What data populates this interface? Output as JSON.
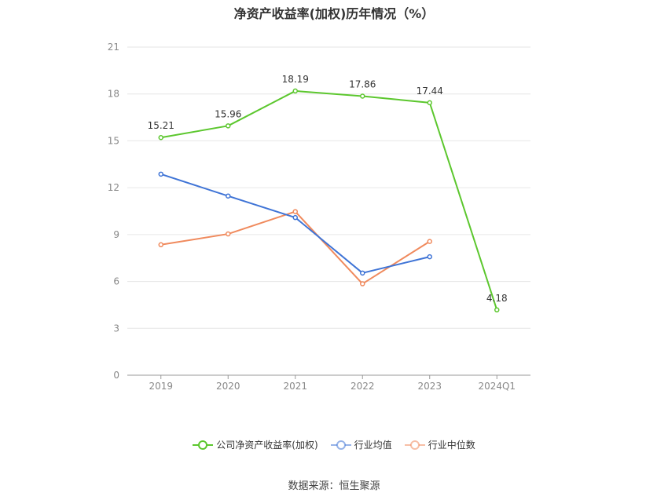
{
  "title": "净资产收益率(加权)历年情况（%）",
  "source": "数据来源：恒生聚源",
  "chart_data": {
    "type": "line",
    "title": "净资产收益率(加权)历年情况（%）",
    "categories": [
      "2019",
      "2020",
      "2021",
      "2022",
      "2023",
      "2024Q1"
    ],
    "ylim": [
      0,
      21
    ],
    "yticks": [
      0,
      3,
      6,
      9,
      12,
      15,
      18,
      21
    ],
    "grid": true,
    "legend_position": "bottom",
    "series": [
      {
        "name": "公司净资产收益率(加权)",
        "color": "#5cc72e",
        "values": [
          15.21,
          15.96,
          18.19,
          17.86,
          17.44,
          4.18
        ],
        "labels": [
          "15.21",
          "15.96",
          "18.19",
          "17.86",
          "17.44",
          "4.18"
        ]
      },
      {
        "name": "行业均值",
        "color": "#3f74d6",
        "values": [
          12.87,
          11.47,
          10.09,
          6.54,
          7.58,
          null
        ],
        "labels": null
      },
      {
        "name": "行业中位数",
        "color": "#f08a5d",
        "values": [
          8.35,
          9.04,
          10.47,
          5.85,
          8.56,
          null
        ],
        "labels": null
      }
    ]
  }
}
